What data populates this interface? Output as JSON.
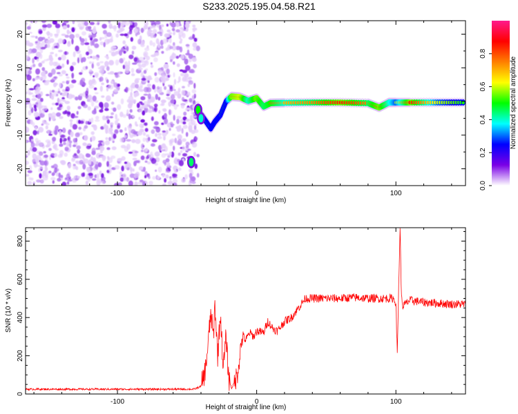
{
  "title": "S233.2025.195.04.58.R21",
  "chart_data": [
    {
      "type": "heatmap",
      "xlabel": "Height of straight line (km)",
      "ylabel": "Frequency (Hz)",
      "xlim": [
        -166,
        150
      ],
      "ylim": [
        -25,
        24
      ],
      "xticks": [
        -100,
        0,
        100
      ],
      "yticks": [
        -20,
        -10,
        0,
        10,
        20
      ],
      "colorbar": {
        "label": "Normalized spectral amplitude",
        "range": [
          0,
          1
        ],
        "ticks": [
          0.0,
          0.2,
          0.4,
          0.6,
          0.8
        ],
        "tick_labels": [
          "0.0",
          "0.2",
          "0.4",
          "0.6",
          "0.8"
        ],
        "colormap": [
          "#ffffff",
          "#7a00e6",
          "#0000ff",
          "#00ffff",
          "#00ff00",
          "#ffff00",
          "#ff7f00",
          "#ff0000",
          "#ff1a8c"
        ]
      },
      "noise_region_x": [
        -166,
        -45
      ],
      "ridge": [
        {
          "x": -42,
          "f": -3,
          "a": 0.5
        },
        {
          "x": -38,
          "f": -5,
          "a": 0.45
        },
        {
          "x": -33,
          "f": -8,
          "a": 0.4
        },
        {
          "x": -30,
          "f": -6,
          "a": 0.35
        },
        {
          "x": -26,
          "f": -4,
          "a": 0.45
        },
        {
          "x": -22,
          "f": 0,
          "a": 0.5
        },
        {
          "x": -18,
          "f": 1.5,
          "a": 0.85
        },
        {
          "x": -12,
          "f": 1.3,
          "a": 0.9
        },
        {
          "x": -6,
          "f": 0.2,
          "a": 0.7
        },
        {
          "x": 0,
          "f": 1.0,
          "a": 0.85
        },
        {
          "x": 5,
          "f": -1.5,
          "a": 0.75
        },
        {
          "x": 10,
          "f": -0.5,
          "a": 0.8
        },
        {
          "x": 20,
          "f": -0.4,
          "a": 0.7
        },
        {
          "x": 40,
          "f": -0.3,
          "a": 0.75
        },
        {
          "x": 60,
          "f": -0.3,
          "a": 0.85
        },
        {
          "x": 80,
          "f": -0.5,
          "a": 0.75
        },
        {
          "x": 88,
          "f": -1.8,
          "a": 0.85
        },
        {
          "x": 95,
          "f": -0.3,
          "a": 0.7
        },
        {
          "x": 100,
          "f": -0.3,
          "a": 0.6
        },
        {
          "x": 110,
          "f": -0.3,
          "a": 0.85
        },
        {
          "x": 130,
          "f": -0.3,
          "a": 0.6
        },
        {
          "x": 150,
          "f": -0.3,
          "a": 0.5
        }
      ],
      "spots": [
        {
          "x": -47,
          "f": -18,
          "a": 0.45
        },
        {
          "x": -42,
          "f": -2.5,
          "a": 0.5
        },
        {
          "x": -40,
          "f": -5,
          "a": 0.4
        }
      ]
    },
    {
      "type": "line",
      "xlabel": "Height of straight line (km)",
      "ylabel": "SNR (10 * v/v)",
      "xlim": [
        -166,
        150
      ],
      "ylim": [
        0,
        870
      ],
      "xticks": [
        -100,
        0,
        100
      ],
      "yticks": [
        0,
        200,
        400,
        600,
        800
      ],
      "series": [
        {
          "color": "#ff0000",
          "points": [
            [
              -166,
              25
            ],
            [
              -140,
              25
            ],
            [
              -120,
              25
            ],
            [
              -100,
              25
            ],
            [
              -80,
              25
            ],
            [
              -60,
              25
            ],
            [
              -45,
              25
            ],
            [
              -40,
              40
            ],
            [
              -37,
              120
            ],
            [
              -35,
              250
            ],
            [
              -33,
              420
            ],
            [
              -31,
              300
            ],
            [
              -30,
              470
            ],
            [
              -28,
              200
            ],
            [
              -26,
              420
            ],
            [
              -24,
              130
            ],
            [
              -22,
              300
            ],
            [
              -20,
              80
            ],
            [
              -18,
              30
            ],
            [
              -16,
              60
            ],
            [
              -14,
              100
            ],
            [
              -12,
              210
            ],
            [
              -10,
              310
            ],
            [
              -8,
              280
            ],
            [
              -5,
              320
            ],
            [
              -2,
              300
            ],
            [
              0,
              330
            ],
            [
              5,
              320
            ],
            [
              8,
              380
            ],
            [
              12,
              340
            ],
            [
              15,
              330
            ],
            [
              20,
              380
            ],
            [
              25,
              400
            ],
            [
              30,
              450
            ],
            [
              35,
              500
            ],
            [
              40,
              500
            ],
            [
              50,
              500
            ],
            [
              60,
              500
            ],
            [
              70,
              505
            ],
            [
              80,
              500
            ],
            [
              90,
              500
            ],
            [
              98,
              500
            ],
            [
              100,
              480
            ],
            [
              101,
              200
            ],
            [
              102,
              560
            ],
            [
              103,
              870
            ],
            [
              104,
              500
            ],
            [
              105,
              460
            ],
            [
              110,
              490
            ],
            [
              120,
              480
            ],
            [
              130,
              475
            ],
            [
              140,
              470
            ],
            [
              150,
              470
            ]
          ]
        }
      ]
    }
  ]
}
